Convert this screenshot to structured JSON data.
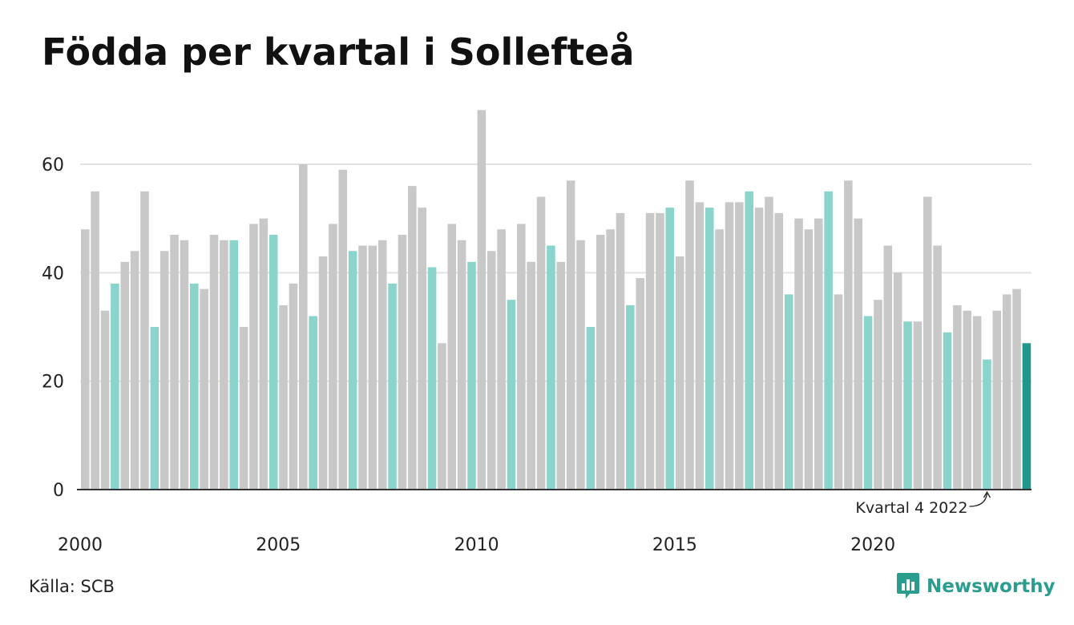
{
  "title": "Födda per kvartal i Sollefteå",
  "source": "Källa: SCB",
  "brand": "Newsworthy",
  "colors": {
    "bar_default": "#c8c8c8",
    "bar_q4": "#8ad4cc",
    "bar_latest": "#1f978a",
    "grid": "#e2e2e2",
    "axis": "#333333",
    "brand": "#2a9d8f"
  },
  "chart_data": {
    "type": "bar",
    "title": "Födda per kvartal i Sollefteå",
    "xlabel": "",
    "ylabel": "",
    "ylim": [
      0,
      70
    ],
    "yticks": [
      0,
      20,
      40,
      60
    ],
    "xtick_labels": [
      "2000",
      "2005",
      "2010",
      "2015",
      "2020"
    ],
    "grid": true,
    "highlight_note": "Q4 bars shown in teal; latest bar in dark teal",
    "annotation": "Kvartal 4 2022",
    "categories": [
      "2000 Q1",
      "2000 Q2",
      "2000 Q3",
      "2000 Q4",
      "2001 Q1",
      "2001 Q2",
      "2001 Q3",
      "2001 Q4",
      "2002 Q1",
      "2002 Q2",
      "2002 Q3",
      "2002 Q4",
      "2003 Q1",
      "2003 Q2",
      "2003 Q3",
      "2003 Q4",
      "2004 Q1",
      "2004 Q2",
      "2004 Q3",
      "2004 Q4",
      "2005 Q1",
      "2005 Q2",
      "2005 Q3",
      "2005 Q4",
      "2006 Q1",
      "2006 Q2",
      "2006 Q3",
      "2006 Q4",
      "2007 Q1",
      "2007 Q2",
      "2007 Q3",
      "2007 Q4",
      "2008 Q1",
      "2008 Q2",
      "2008 Q3",
      "2008 Q4",
      "2009 Q1",
      "2009 Q2",
      "2009 Q3",
      "2009 Q4",
      "2010 Q1",
      "2010 Q2",
      "2010 Q3",
      "2010 Q4",
      "2011 Q1",
      "2011 Q2",
      "2011 Q3",
      "2011 Q4",
      "2012 Q1",
      "2012 Q2",
      "2012 Q3",
      "2012 Q4",
      "2013 Q1",
      "2013 Q2",
      "2013 Q3",
      "2013 Q4",
      "2014 Q1",
      "2014 Q2",
      "2014 Q3",
      "2014 Q4",
      "2015 Q1",
      "2015 Q2",
      "2015 Q3",
      "2015 Q4",
      "2016 Q1",
      "2016 Q2",
      "2016 Q3",
      "2016 Q4",
      "2017 Q1",
      "2017 Q2",
      "2017 Q3",
      "2017 Q4",
      "2018 Q1",
      "2018 Q2",
      "2018 Q3",
      "2018 Q4",
      "2019 Q1",
      "2019 Q2",
      "2019 Q3",
      "2019 Q4",
      "2020 Q1",
      "2020 Q2",
      "2020 Q3",
      "2020 Q4",
      "2021 Q1",
      "2021 Q2",
      "2021 Q3",
      "2021 Q4",
      "2022 Q1",
      "2022 Q2",
      "2022 Q3",
      "2022 Q4",
      "2023 Q1",
      "2023 Q2",
      "2023 Q3",
      "2023 Q4"
    ],
    "values": [
      48,
      55,
      33,
      38,
      42,
      44,
      55,
      30,
      44,
      47,
      46,
      38,
      37,
      47,
      46,
      46,
      30,
      49,
      50,
      47,
      34,
      38,
      60,
      32,
      43,
      49,
      59,
      44,
      45,
      45,
      46,
      38,
      47,
      56,
      52,
      41,
      27,
      49,
      46,
      42,
      70,
      44,
      48,
      35,
      49,
      42,
      54,
      45,
      42,
      57,
      46,
      30,
      47,
      48,
      51,
      34,
      39,
      51,
      51,
      52,
      43,
      57,
      53,
      52,
      48,
      53,
      53,
      55,
      52,
      54,
      51,
      36,
      50,
      48,
      50,
      55,
      36,
      57,
      50,
      32,
      35,
      45,
      40,
      31,
      31,
      54,
      45,
      29,
      34,
      33,
      32,
      24,
      33,
      36,
      37,
      27
    ]
  }
}
